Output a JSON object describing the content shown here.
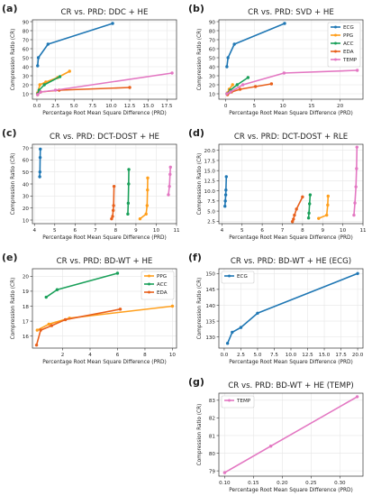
{
  "colors": {
    "ECG": "#1f77b4",
    "PPG": "#ff9f1c",
    "ACC": "#1aa05a",
    "EDA": "#e8601c",
    "TEMP": "#e377c2"
  },
  "chart_data": [
    {
      "id": "a",
      "panel_label": "(a)",
      "type": "line",
      "title": "CR vs. PRD: DDC + HE",
      "xlabel": "Percentage Root Mean Square Difference (PRD)",
      "ylabel": "Compression Ratio (CR)",
      "xlim": [
        -0.6,
        18.8
      ],
      "ylim": [
        4,
        92
      ],
      "xticks": [
        0.0,
        2.5,
        5.0,
        7.5,
        10.0,
        12.5,
        15.0,
        17.5
      ],
      "xtick_labels": [
        "0.0",
        "2.5",
        "5.0",
        "7.5",
        "10.0",
        "12.5",
        "15.0",
        "17.5"
      ],
      "yticks": [
        10,
        20,
        30,
        40,
        50,
        60,
        70,
        80,
        90
      ],
      "ytick_labels": [
        "10",
        "20",
        "30",
        "40",
        "50",
        "60",
        "70",
        "80",
        "90"
      ],
      "legend": null,
      "series": [
        {
          "key": "ECG",
          "x": [
            0.1,
            0.2,
            1.5,
            10.2
          ],
          "y": [
            41,
            50,
            65,
            88
          ]
        },
        {
          "key": "PPG",
          "x": [
            0.1,
            0.4,
            1.2,
            2.8,
            4.4
          ],
          "y": [
            11,
            20,
            23,
            28,
            35
          ]
        },
        {
          "key": "ACC",
          "x": [
            0.1,
            0.3,
            1.0,
            3.1
          ],
          "y": [
            10,
            14,
            20,
            29
          ]
        },
        {
          "key": "EDA",
          "x": [
            0.1,
            0.5,
            3.0,
            12.5
          ],
          "y": [
            9,
            12,
            14,
            17
          ]
        },
        {
          "key": "TEMP",
          "x": [
            0.1,
            0.5,
            2.5,
            18.2
          ],
          "y": [
            9,
            12,
            14,
            33
          ]
        }
      ]
    },
    {
      "id": "b",
      "panel_label": "(b)",
      "type": "line",
      "title": "CR vs. PRD: SVD + HE",
      "xlabel": "Percentage Root Mean Square Difference (PRD)",
      "ylabel": "Compression Ratio (CR)",
      "xlim": [
        -1.2,
        24
      ],
      "ylim": [
        4,
        92
      ],
      "xticks": [
        0,
        5,
        10,
        15,
        20
      ],
      "xtick_labels": [
        "0",
        "5",
        "10",
        "15",
        "20"
      ],
      "yticks": [
        10,
        20,
        30,
        40,
        50,
        60,
        70,
        80,
        90
      ],
      "ytick_labels": [
        "10",
        "20",
        "30",
        "40",
        "50",
        "60",
        "70",
        "80",
        "90"
      ],
      "legend": "top-right",
      "series": [
        {
          "key": "ECG",
          "name": "ECG",
          "x": [
            0.2,
            0.4,
            1.5,
            10.3
          ],
          "y": [
            40,
            50,
            65,
            88
          ]
        },
        {
          "key": "PPG",
          "name": "PPG",
          "x": [
            0.3,
            0.6,
            1.2
          ],
          "y": [
            11,
            15,
            20
          ]
        },
        {
          "key": "ACC",
          "name": "ACC",
          "x": [
            0.2,
            0.8,
            2.0,
            3.9
          ],
          "y": [
            10,
            14,
            20,
            28
          ]
        },
        {
          "key": "EDA",
          "name": "EDA",
          "x": [
            0.3,
            1.0,
            2.5,
            5.2,
            8.0
          ],
          "y": [
            9,
            12,
            15,
            18,
            21
          ]
        },
        {
          "key": "TEMP",
          "name": "TEMP",
          "x": [
            0.2,
            0.8,
            3.0,
            10.2,
            23.0
          ],
          "y": [
            10,
            12,
            20,
            33,
            36
          ]
        }
      ]
    },
    {
      "id": "c",
      "panel_label": "(c)",
      "type": "line",
      "title": "CR vs. PRD: DCT-DOST + HE",
      "xlabel": "Percentage Root Mean Square Difference (PRD)",
      "ylabel": "Compression Ratio (CR)",
      "xlim": [
        3.9,
        11.0
      ],
      "ylim": [
        7,
        73
      ],
      "xticks": [
        4,
        5,
        6,
        7,
        8,
        9,
        10,
        11
      ],
      "xtick_labels": [
        "4",
        "5",
        "6",
        "7",
        "8",
        "9",
        "10",
        "11"
      ],
      "yticks": [
        10,
        20,
        30,
        40,
        50,
        60,
        70
      ],
      "ytick_labels": [
        "10",
        "20",
        "30",
        "40",
        "50",
        "60",
        "70"
      ],
      "legend": null,
      "series": [
        {
          "key": "ECG",
          "x": [
            4.26,
            4.27,
            4.28,
            4.29
          ],
          "y": [
            46,
            50,
            62,
            69
          ]
        },
        {
          "key": "PPG",
          "x": [
            9.2,
            9.5,
            9.55,
            9.57,
            9.58
          ],
          "y": [
            11,
            15,
            22,
            35,
            45
          ]
        },
        {
          "key": "ACC",
          "x": [
            8.6,
            8.62,
            8.64,
            8.65
          ],
          "y": [
            15,
            24,
            40,
            52
          ]
        },
        {
          "key": "EDA",
          "x": [
            7.8,
            7.85,
            7.88,
            7.9,
            7.92
          ],
          "y": [
            11,
            13,
            18,
            22,
            38
          ]
        },
        {
          "key": "TEMP",
          "x": [
            10.6,
            10.65,
            10.68,
            10.7
          ],
          "y": [
            31,
            38,
            48,
            54
          ]
        }
      ]
    },
    {
      "id": "d",
      "panel_label": "(d)",
      "type": "line",
      "title": "CR vs. PRD: DCT-DOST + RLE",
      "xlabel": "Percentage Root Mean Square Difference (PRD)",
      "ylabel": "Compression Ratio (CR)",
      "xlim": [
        3.85,
        11.0
      ],
      "ylim": [
        1.9,
        21.5
      ],
      "xticks": [
        4,
        5,
        6,
        7,
        8,
        9,
        10,
        11
      ],
      "xtick_labels": [
        "4",
        "5",
        "6",
        "7",
        "8",
        "9",
        "10",
        "11"
      ],
      "yticks": [
        2.5,
        5.0,
        7.5,
        10.0,
        12.5,
        15.0,
        17.5,
        20.0
      ],
      "ytick_labels": [
        "2.5",
        "5.0",
        "7.5",
        "10.0",
        "12.5",
        "15.0",
        "17.5",
        "20.0"
      ],
      "legend": null,
      "series": [
        {
          "key": "ECG",
          "x": [
            4.15,
            4.17,
            4.19,
            4.2,
            4.22
          ],
          "y": [
            6.2,
            7.5,
            9,
            10.2,
            13.5
          ]
        },
        {
          "key": "PPG",
          "x": [
            8.8,
            9.2,
            9.25,
            9.27
          ],
          "y": [
            3.2,
            4,
            6.5,
            8.7
          ]
        },
        {
          "key": "ACC",
          "x": [
            8.3,
            8.32,
            8.35,
            8.38
          ],
          "y": [
            3.3,
            4.5,
            6.8,
            9
          ]
        },
        {
          "key": "EDA",
          "x": [
            7.5,
            7.55,
            7.6,
            7.7,
            8.0
          ],
          "y": [
            2.4,
            3,
            4,
            5.5,
            8.5
          ]
        },
        {
          "key": "TEMP",
          "x": [
            10.55,
            10.6,
            10.65,
            10.68,
            10.7
          ],
          "y": [
            4,
            7,
            11,
            15.5,
            20.8
          ]
        }
      ]
    },
    {
      "id": "e",
      "panel_label": "(e)",
      "type": "line",
      "title": "CR vs. PRD: BD-WT + HE",
      "xlabel": "Percentage Root Mean Square Difference (PRD)",
      "ylabel": "Compression Ratio (CR)",
      "xlim": [
        -0.2,
        10.3
      ],
      "ylim": [
        15.2,
        20.5
      ],
      "xticks": [
        2,
        4,
        6,
        8,
        10
      ],
      "xtick_labels": [
        "2",
        "4",
        "6",
        "8",
        "10"
      ],
      "yticks": [
        16,
        17,
        18,
        19,
        20
      ],
      "ytick_labels": [
        "16",
        "17",
        "18",
        "19",
        "20"
      ],
      "legend": "top-right",
      "series": [
        {
          "key": "PPG",
          "name": "PPG",
          "x": [
            0.15,
            1.0,
            2.5,
            10.0
          ],
          "y": [
            16.4,
            16.8,
            17.2,
            18.0
          ]
        },
        {
          "key": "ACC",
          "name": "ACC",
          "x": [
            0.8,
            1.6,
            6.0
          ],
          "y": [
            18.6,
            19.1,
            20.2
          ]
        },
        {
          "key": "EDA",
          "name": "EDA",
          "x": [
            0.1,
            0.4,
            1.2,
            2.2,
            6.2
          ],
          "y": [
            15.4,
            16.4,
            16.7,
            17.1,
            17.8
          ]
        }
      ]
    },
    {
      "id": "f",
      "panel_label": "(f)",
      "type": "line",
      "title": "CR vs. PRD: BD-WT + HE (ECG)",
      "xlabel": "Percentage Root Mean Square Difference (PRD)",
      "ylabel": "Compression Ratio (CR)",
      "xlim": [
        -0.8,
        20.8
      ],
      "ylim": [
        126.5,
        151.5
      ],
      "xticks": [
        0.0,
        2.5,
        5.0,
        7.5,
        10.0,
        12.5,
        15.0,
        17.5,
        20.0
      ],
      "xtick_labels": [
        "0.0",
        "2.5",
        "5.0",
        "7.5",
        "10.0",
        "12.5",
        "15.0",
        "17.5",
        "20.0"
      ],
      "yticks": [
        130,
        135,
        140,
        145,
        150
      ],
      "ytick_labels": [
        "130",
        "135",
        "140",
        "145",
        "150"
      ],
      "legend": "top-left",
      "series": [
        {
          "key": "ECG",
          "name": "ECG",
          "x": [
            0.5,
            1.2,
            2.5,
            5.0,
            20.0
          ],
          "y": [
            128,
            131.5,
            133,
            137.5,
            150
          ]
        }
      ]
    },
    {
      "id": "g",
      "panel_label": "(g)",
      "type": "line",
      "title": "CR vs. PRD: BD-WT + HE (TEMP)",
      "xlabel": "Percentage Root Mean Square Difference (PRD)",
      "ylabel": "Compression Ratio (CR)",
      "xlim": [
        0.09,
        0.34
      ],
      "ylim": [
        78.7,
        83.4
      ],
      "xticks": [
        0.1,
        0.15,
        0.2,
        0.25,
        0.3
      ],
      "xtick_labels": [
        "0.10",
        "0.15",
        "0.20",
        "0.25",
        "0.30"
      ],
      "yticks": [
        79,
        80,
        81,
        82,
        83
      ],
      "ytick_labels": [
        "79",
        "80",
        "81",
        "82",
        "83"
      ],
      "legend": "top-left",
      "series": [
        {
          "key": "TEMP",
          "name": "TEMP",
          "x": [
            0.1,
            0.18,
            0.33
          ],
          "y": [
            78.9,
            80.4,
            83.2
          ]
        }
      ]
    }
  ]
}
